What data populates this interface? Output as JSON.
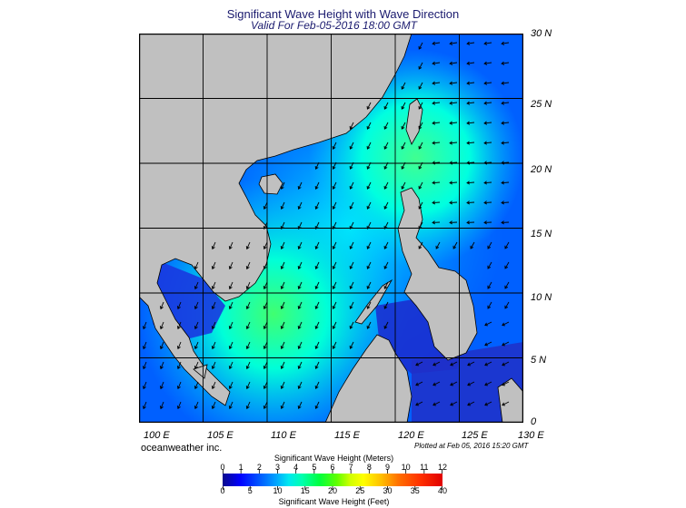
{
  "title": "Significant Wave Height with Wave Direction",
  "subtitle": "Valid For Feb-05-2016 18:00 GMT",
  "credit": "oceanweather inc.",
  "plotted": "Plotted at Feb 05, 2016 15:20 GMT",
  "lat_labels": [
    "30 N",
    "25 N",
    "20 N",
    "15 N",
    "10 N",
    "5 N",
    "0"
  ],
  "lon_labels": [
    "100 E",
    "105 E",
    "110 E",
    "115 E",
    "120 E",
    "125 E",
    "130 E"
  ],
  "legend": {
    "meters_title": "Significant Wave Height (Meters)",
    "feet_title": "Significant Wave Height (Feet)",
    "meters_ticks": [
      "0",
      "1",
      "2",
      "3",
      "4",
      "5",
      "6",
      "7",
      "8",
      "9",
      "10",
      "11",
      "12"
    ],
    "feet_ticks": [
      "0",
      "5",
      "10",
      "15",
      "20",
      "25",
      "30",
      "35",
      "40"
    ]
  },
  "colors": {
    "land": "#c0c0c0",
    "ocean_base": "#0050ff",
    "calm": "#0a18d0",
    "high": "#00ffd0",
    "peak": "#40ff60"
  }
}
